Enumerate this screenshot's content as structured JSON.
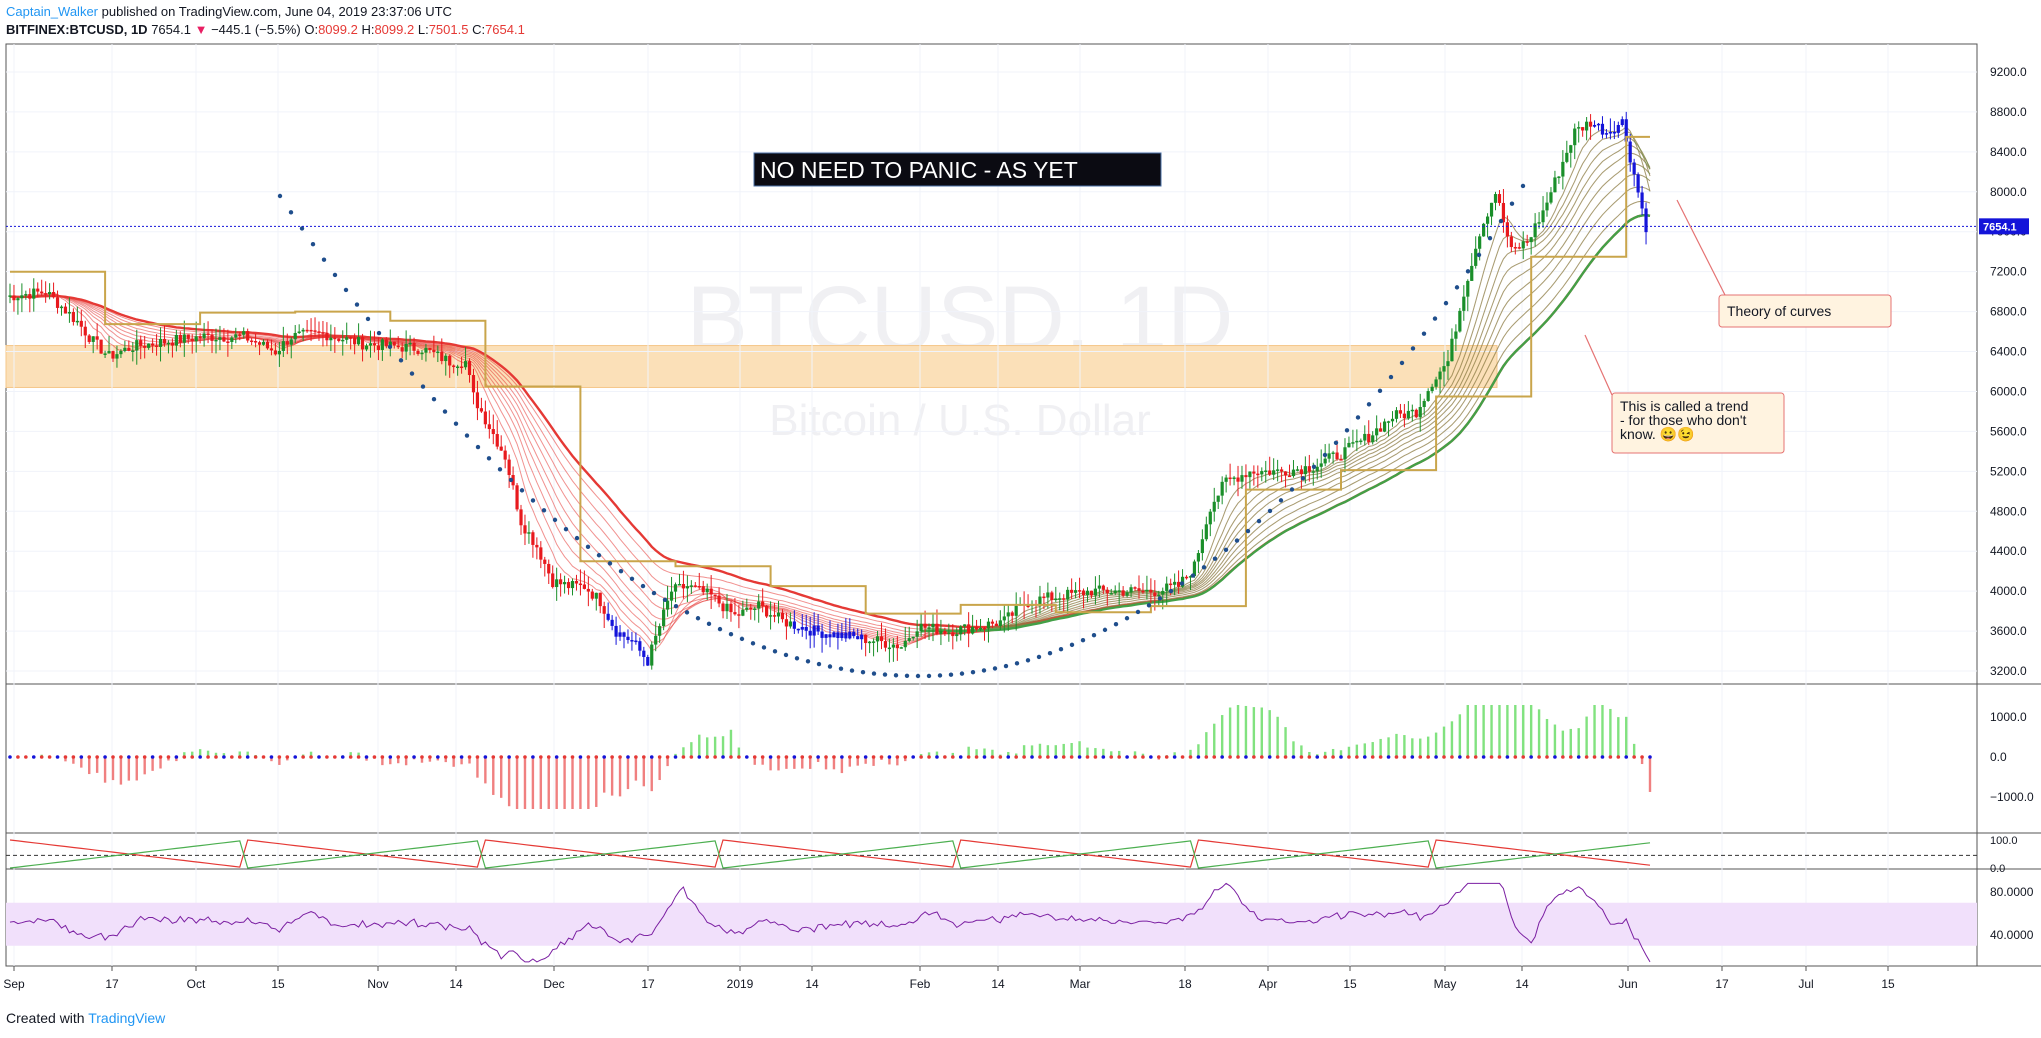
{
  "header": {
    "user": "Captain_Walker",
    "published": "published on TradingView.com, June 04, 2019 23:37:06 UTC",
    "symbol": "BITFINEX:BTCUSD, 1D",
    "last": "7654.1",
    "arrow": "▼",
    "change": "−445.1 (−5.5%)",
    "o_label": "O:",
    "o": "8099.2",
    "h_label": "H:",
    "h": "8099.2",
    "l_label": "L:",
    "l": "7501.5",
    "c_label": "C:",
    "c": "7654.1"
  },
  "footer": {
    "created_with": "Created with",
    "brand": "TradingView"
  },
  "colors": {
    "up": "#1a8f2a",
    "down": "#e8191d",
    "blue": "#1414d9",
    "accent": "#2196f3",
    "zone": "#fbe0b8",
    "rsi_band": "#f1e0fb",
    "dots": "#1f4e8c"
  },
  "chart_data": {
    "type": "candlestick",
    "watermark": {
      "symbol": "BTCUSD, 1D",
      "name": "Bitcoin / U.S. Dollar"
    },
    "price_axis": [
      9200,
      8800,
      8400,
      8000,
      7600,
      7200,
      6800,
      6400,
      6000,
      5600,
      5200,
      4800,
      4400,
      4000,
      3600,
      3200
    ],
    "price_axis_labels": [
      "9200.0",
      "8800.0",
      "8400.0",
      "8000.0",
      "7600.0",
      "7200.0",
      "6800.0",
      "6400.0",
      "6000.0",
      "5600.0",
      "5200.0",
      "4800.0",
      "4400.0",
      "4000.0",
      "3600.0",
      "3200.0"
    ],
    "ylim": [
      3000,
      9500
    ],
    "last_price_label": "7654.1",
    "last_price": 7654.1,
    "time_axis": [
      "Sep",
      "17",
      "Oct",
      "15",
      "Nov",
      "14",
      "Dec",
      "17",
      "2019",
      "14",
      "Feb",
      "14",
      "Mar",
      "18",
      "Apr",
      "15",
      "May",
      "14",
      "Jun",
      "17",
      "Jul",
      "15"
    ],
    "zone": {
      "low": 6040,
      "high": 6460
    },
    "annotations": [
      {
        "text": "NO NEED TO PANIC - AS YET"
      },
      {
        "text": "Theory of curves"
      },
      {
        "text": "This is called a trend - for those who don't know. 😀😉"
      }
    ],
    "price_path": [
      [
        0,
        6950
      ],
      [
        10,
        7000
      ],
      [
        14,
        6850
      ],
      [
        18,
        6700
      ],
      [
        22,
        6500
      ],
      [
        26,
        6350
      ],
      [
        32,
        6450
      ],
      [
        40,
        6500
      ],
      [
        50,
        6550
      ],
      [
        60,
        6550
      ],
      [
        68,
        6400
      ],
      [
        72,
        6550
      ],
      [
        80,
        6580
      ],
      [
        90,
        6480
      ],
      [
        98,
        6450
      ],
      [
        105,
        6430
      ],
      [
        112,
        6300
      ],
      [
        116,
        6300
      ],
      [
        118,
        5950
      ],
      [
        122,
        5650
      ],
      [
        126,
        5350
      ],
      [
        130,
        4700
      ],
      [
        134,
        4450
      ],
      [
        138,
        4100
      ],
      [
        142,
        4050
      ],
      [
        146,
        4050
      ],
      [
        150,
        3900
      ],
      [
        154,
        3600
      ],
      [
        158,
        3500
      ],
      [
        162,
        3300
      ],
      [
        165,
        3650
      ],
      [
        168,
        4000
      ],
      [
        172,
        4050
      ],
      [
        178,
        3950
      ],
      [
        184,
        3750
      ],
      [
        190,
        3850
      ],
      [
        196,
        3700
      ],
      [
        204,
        3600
      ],
      [
        212,
        3550
      ],
      [
        220,
        3500
      ],
      [
        226,
        3450
      ],
      [
        230,
        3650
      ],
      [
        238,
        3600
      ],
      [
        246,
        3650
      ],
      [
        252,
        3700
      ],
      [
        258,
        3900
      ],
      [
        266,
        3950
      ],
      [
        274,
        4000
      ],
      [
        282,
        4000
      ],
      [
        290,
        4000
      ],
      [
        296,
        4050
      ],
      [
        300,
        4250
      ],
      [
        304,
        4850
      ],
      [
        308,
        5100
      ],
      [
        314,
        5200
      ],
      [
        322,
        5200
      ],
      [
        330,
        5250
      ],
      [
        338,
        5400
      ],
      [
        344,
        5550
      ],
      [
        350,
        5750
      ],
      [
        356,
        5800
      ],
      [
        360,
        6100
      ],
      [
        364,
        6300
      ],
      [
        368,
        7000
      ],
      [
        372,
        7600
      ],
      [
        376,
        8000
      ],
      [
        380,
        7400
      ],
      [
        384,
        7500
      ],
      [
        388,
        7800
      ],
      [
        392,
        8200
      ],
      [
        396,
        8600
      ],
      [
        400,
        8700
      ],
      [
        404,
        8600
      ],
      [
        408,
        8700
      ],
      [
        412,
        8000
      ],
      [
        414,
        7654
      ]
    ],
    "panels": [
      {
        "name": "momentum histogram",
        "axis_labels": [
          "1000.0",
          "0.0",
          "−1000.0"
        ],
        "axis_values": [
          1000,
          0,
          -1000
        ]
      },
      {
        "name": "oscillator",
        "axis_labels": [
          "100.0",
          "0.0"
        ],
        "axis_values": [
          100,
          0
        ]
      },
      {
        "name": "RSI",
        "axis_labels": [
          "80.0000",
          "40.0000"
        ],
        "axis_values": [
          80,
          40
        ],
        "band": [
          30,
          70
        ]
      }
    ]
  }
}
